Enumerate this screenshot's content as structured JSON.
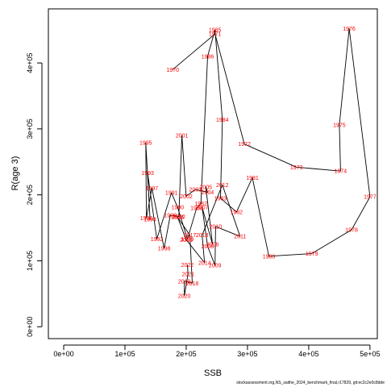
{
  "chart_data": {
    "type": "line",
    "xlabel": "SSB",
    "ylabel": "R(age 3)",
    "xlim": [
      -25000,
      512000
    ],
    "ylim": [
      -18000,
      482000
    ],
    "x_ticks": [
      0,
      100000,
      200000,
      300000,
      400000,
      500000
    ],
    "x_tick_labels": [
      "0e+00",
      "1e+05",
      "2e+05",
      "3e+05",
      "4e+05",
      "5e+05"
    ],
    "y_ticks": [
      0,
      100000,
      200000,
      300000,
      400000
    ],
    "y_tick_labels": [
      "0e+00",
      "1e+05",
      "2e+05",
      "3e+05",
      "4e+05"
    ],
    "grid": false,
    "line_color": "#000000",
    "label_color": "#ff0000",
    "points": [
      {
        "year": "1970",
        "ssb": 178000,
        "rec": 390000
      },
      {
        "year": "1971",
        "ssb": 247000,
        "rec": 444000
      },
      {
        "year": "1972",
        "ssb": 295000,
        "rec": 277000
      },
      {
        "year": "1973",
        "ssb": 380000,
        "rec": 242000
      },
      {
        "year": "1974",
        "ssb": 452000,
        "rec": 236000
      },
      {
        "year": "1975",
        "ssb": 450000,
        "rec": 306000
      },
      {
        "year": "1976",
        "ssb": 466000,
        "rec": 452000
      },
      {
        "year": "1977",
        "ssb": 500000,
        "rec": 197000
      },
      {
        "year": "1978",
        "ssb": 470000,
        "rec": 147000
      },
      {
        "year": "1979",
        "ssb": 405000,
        "rec": 111000
      },
      {
        "year": "1980",
        "ssb": 335000,
        "rec": 107000
      },
      {
        "year": "1981",
        "ssb": 308000,
        "rec": 226000
      },
      {
        "year": "1982",
        "ssb": 282000,
        "rec": 174000
      },
      {
        "year": "1983",
        "ssb": 256000,
        "rec": 195000
      },
      {
        "year": "1984",
        "ssb": 259000,
        "rec": 314000
      },
      {
        "year": "1985",
        "ssb": 247000,
        "rec": 450000
      },
      {
        "year": "1986",
        "ssb": 235000,
        "rec": 410000
      },
      {
        "year": "1987",
        "ssb": 224000,
        "rec": 187000
      },
      {
        "year": "1988",
        "ssb": 217000,
        "rec": 180000
      },
      {
        "year": "1989",
        "ssb": 202000,
        "rec": 133000
      },
      {
        "year": "1990",
        "ssb": 186000,
        "rec": 181000
      },
      {
        "year": "1991",
        "ssb": 176000,
        "rec": 203000
      },
      {
        "year": "1992",
        "ssb": 152000,
        "rec": 133000
      },
      {
        "year": "1993",
        "ssb": 137000,
        "rec": 233000
      },
      {
        "year": "1994",
        "ssb": 141000,
        "rec": 163000
      },
      {
        "year": "1995",
        "ssb": 134000,
        "rec": 279000
      },
      {
        "year": "1996",
        "ssb": 135000,
        "rec": 165000
      },
      {
        "year": "1997",
        "ssb": 144000,
        "rec": 210000
      },
      {
        "year": "1998",
        "ssb": 164000,
        "rec": 119000
      },
      {
        "year": "1999",
        "ssb": 174000,
        "rec": 169000
      },
      {
        "year": "2000",
        "ssb": 188000,
        "rec": 167000
      },
      {
        "year": "2001",
        "ssb": 193000,
        "rec": 290000
      },
      {
        "year": "2002",
        "ssb": 200000,
        "rec": 198000
      },
      {
        "year": "2003",
        "ssb": 215000,
        "rec": 208000
      },
      {
        "year": "2004",
        "ssb": 235000,
        "rec": 204000
      },
      {
        "year": "2005",
        "ssb": 232000,
        "rec": 212000
      },
      {
        "year": "2006",
        "ssb": 243000,
        "rec": 125000
      },
      {
        "year": "2007",
        "ssb": 226000,
        "rec": 181000
      },
      {
        "year": "2008",
        "ssb": 235000,
        "rec": 122000
      },
      {
        "year": "2009",
        "ssb": 247000,
        "rec": 93000
      },
      {
        "year": "2010",
        "ssb": 248000,
        "rec": 152000
      },
      {
        "year": "2011",
        "ssb": 288000,
        "rec": 137000
      },
      {
        "year": "2012",
        "ssb": 259000,
        "rec": 215000
      },
      {
        "year": "2013",
        "ssb": 226000,
        "rec": 139000
      },
      {
        "year": "2014",
        "ssb": 230000,
        "rec": 97000
      },
      {
        "year": "2015",
        "ssb": 200000,
        "rec": 132000
      },
      {
        "year": "2016",
        "ssb": 186000,
        "rec": 166000
      },
      {
        "year": "2017",
        "ssb": 206000,
        "rec": 139000
      },
      {
        "year": "2018",
        "ssb": 210000,
        "rec": 66000
      },
      {
        "year": "2019",
        "ssb": 197000,
        "rec": 69000
      },
      {
        "year": "2020",
        "ssb": 197000,
        "rec": 47000
      },
      {
        "year": "2021",
        "ssb": 203000,
        "rec": 80000
      },
      {
        "year": "2022",
        "ssb": 202000,
        "rec": 94000
      }
    ]
  },
  "footer": {
    "caption": "stockassessment.org,NS_saithe_2024_benchmark_final,r17829, git:ec2c2e0c8dde"
  }
}
